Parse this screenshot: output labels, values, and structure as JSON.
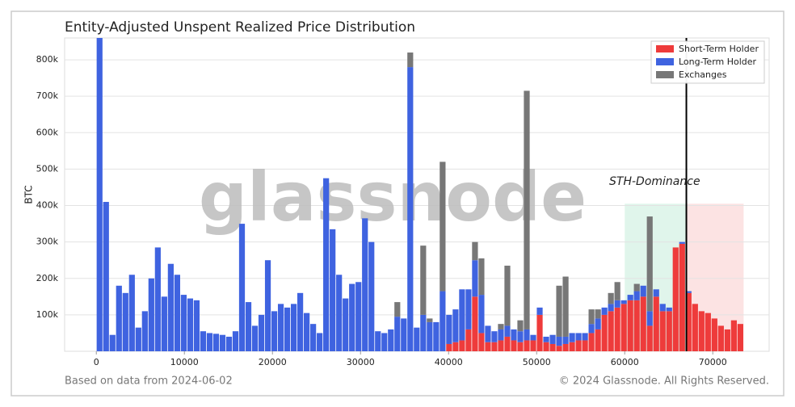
{
  "chart_data": {
    "type": "stacked_histogram",
    "title": "Entity-Adjusted Unspent Realized Price Distribution",
    "ylabel": "BTC",
    "watermark": "glassnode",
    "footer_left": "Based on data from 2024-06-02",
    "footer_right": "© 2024 Glassnode. All Rights Reserved.",
    "legend": "upper right",
    "grid": true,
    "xlim": [
      -3600,
      76400
    ],
    "ylim": [
      0,
      860000
    ],
    "xticks": [
      0,
      10000,
      20000,
      30000,
      40000,
      50000,
      60000,
      70000
    ],
    "yticks": [
      {
        "value": 100000,
        "label": "100k"
      },
      {
        "value": 200000,
        "label": "200k"
      },
      {
        "value": 300000,
        "label": "300k"
      },
      {
        "value": 400000,
        "label": "400k"
      },
      {
        "value": 500000,
        "label": "500k"
      },
      {
        "value": 600000,
        "label": "600k"
      },
      {
        "value": 700000,
        "label": "700k"
      },
      {
        "value": 800000,
        "label": "800k"
      }
    ],
    "bins": [
      0,
      735,
      1470,
      2205,
      2940,
      3675,
      4410,
      5145,
      5880,
      6615,
      7350,
      8085,
      8820,
      9555,
      10290,
      11025,
      11760,
      12495,
      13230,
      13965,
      14700,
      15435,
      16170,
      16905,
      17640,
      18375,
      19110,
      19845,
      20580,
      21315,
      22050,
      22785,
      23520,
      24255,
      24990,
      25725,
      26460,
      27195,
      27930,
      28665,
      29400,
      30135,
      30870,
      31605,
      32340,
      33075,
      33810,
      34545,
      35280,
      36015,
      36750,
      37485,
      38220,
      38955,
      39690,
      40425,
      41160,
      41895,
      42630,
      43365,
      44100,
      44835,
      45570,
      46305,
      47040,
      47775,
      48510,
      49245,
      49980,
      50715,
      51450,
      52185,
      52920,
      53655,
      54390,
      55125,
      55860,
      56595,
      57330,
      58065,
      58800,
      59535,
      60270,
      61005,
      61740,
      62475,
      63210,
      63945,
      64680,
      65415,
      66150,
      66885,
      67620,
      68355,
      69090,
      69825,
      70560,
      71295,
      72030,
      72765,
      73500
    ],
    "series": [
      {
        "name": "Short-Term Holder",
        "color": "#ee3b3b",
        "values": [
          0,
          0,
          0,
          0,
          0,
          0,
          0,
          0,
          0,
          0,
          0,
          0,
          0,
          0,
          0,
          0,
          0,
          0,
          0,
          0,
          0,
          0,
          0,
          0,
          0,
          0,
          0,
          0,
          0,
          0,
          0,
          0,
          0,
          0,
          0,
          0,
          0,
          0,
          0,
          0,
          0,
          0,
          0,
          0,
          0,
          0,
          0,
          0,
          0,
          0,
          0,
          0,
          0,
          0,
          20000,
          25000,
          30000,
          60000,
          150000,
          50000,
          25000,
          25000,
          30000,
          40000,
          30000,
          25000,
          30000,
          30000,
          100000,
          25000,
          20000,
          15000,
          20000,
          25000,
          30000,
          30000,
          50000,
          60000,
          100000,
          110000,
          120000,
          130000,
          140000,
          140000,
          150000,
          70000,
          150000,
          110000,
          110000,
          285000,
          295000,
          160000,
          130000,
          110000,
          105000,
          90000,
          70000,
          60000,
          85000,
          75000
        ]
      },
      {
        "name": "Long-Term Holder",
        "color": "#3f63e0",
        "values": [
          860000,
          410000,
          45000,
          180000,
          160000,
          210000,
          65000,
          110000,
          200000,
          285000,
          150000,
          240000,
          210000,
          155000,
          145000,
          140000,
          55000,
          50000,
          48000,
          45000,
          40000,
          55000,
          350000,
          135000,
          70000,
          100000,
          250000,
          110000,
          130000,
          120000,
          130000,
          160000,
          105000,
          75000,
          50000,
          475000,
          335000,
          210000,
          145000,
          185000,
          190000,
          365000,
          300000,
          55000,
          50000,
          60000,
          95000,
          90000,
          780000,
          65000,
          100000,
          80000,
          80000,
          165000,
          80000,
          90000,
          140000,
          110000,
          100000,
          105000,
          45000,
          30000,
          30000,
          30000,
          30000,
          30000,
          30000,
          15000,
          20000,
          15000,
          25000,
          25000,
          20000,
          25000,
          20000,
          20000,
          25000,
          30000,
          20000,
          20000,
          20000,
          10000,
          15000,
          25000,
          30000,
          40000,
          20000,
          20000,
          10000,
          0,
          5000,
          5000,
          0,
          0,
          0,
          0,
          0,
          0,
          0,
          0
        ]
      },
      {
        "name": "Exchanges",
        "color": "#777777",
        "values": [
          0,
          0,
          0,
          0,
          0,
          0,
          0,
          0,
          0,
          0,
          0,
          0,
          0,
          0,
          0,
          0,
          0,
          0,
          0,
          0,
          0,
          0,
          0,
          0,
          0,
          0,
          0,
          0,
          0,
          0,
          0,
          0,
          0,
          0,
          0,
          0,
          0,
          0,
          0,
          0,
          0,
          0,
          0,
          0,
          0,
          0,
          40000,
          0,
          40000,
          0,
          190000,
          10000,
          0,
          355000,
          0,
          0,
          0,
          0,
          50000,
          100000,
          0,
          0,
          15000,
          165000,
          0,
          30000,
          655000,
          0,
          0,
          0,
          0,
          140000,
          165000,
          0,
          0,
          0,
          40000,
          25000,
          0,
          30000,
          50000,
          0,
          0,
          20000,
          0,
          260000,
          0,
          0,
          0,
          0,
          0,
          0,
          0,
          0,
          0,
          0,
          0,
          0,
          0,
          0
        ]
      }
    ],
    "regions": [
      {
        "x": [
          60000,
          67000
        ],
        "top": 405000,
        "color": "#d6f2e4"
      },
      {
        "x": [
          67000,
          73500
        ],
        "top": 405000,
        "color": "#fbd9d9"
      }
    ],
    "vline": 67000,
    "annotation": {
      "text": "STH-Dominance",
      "x": 63400,
      "y": 465000
    }
  }
}
